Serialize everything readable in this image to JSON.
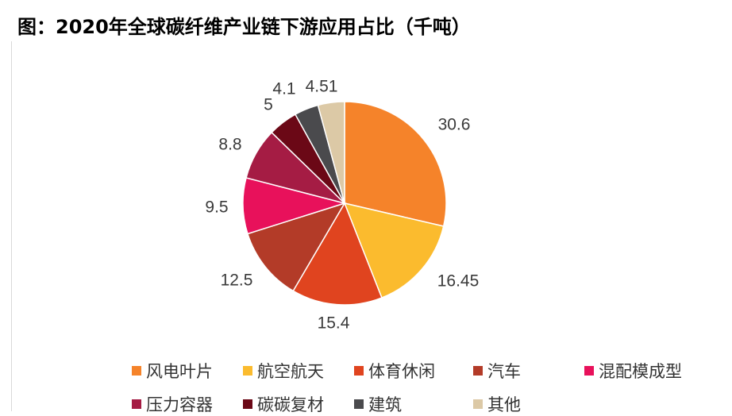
{
  "chart_data": {
    "type": "pie",
    "title": "图：2020年全球碳纤维产业链下游应用占比（千吨）",
    "categories": [
      "风电叶片",
      "航空航天",
      "体育休闲",
      "汽车",
      "混配模成型",
      "压力容器",
      "碳碳复材",
      "建筑",
      "其他"
    ],
    "values": [
      30.6,
      16.45,
      15.4,
      12.5,
      9.5,
      8.8,
      5,
      4.1,
      4.51
    ],
    "value_labels": [
      "30.6",
      "16.45",
      "15.4",
      "12.5",
      "9.5",
      "8.8",
      "5",
      "4.1",
      "4.51"
    ],
    "colors": [
      "#F5832A",
      "#FBBB2E",
      "#E0441F",
      "#B33B28",
      "#E8115B",
      "#A51C44",
      "#6B0816",
      "#4A4A4D",
      "#DCC9A6"
    ],
    "legend_placement": "bottom",
    "start_angle": "12 o'clock",
    "direction": "clockwise"
  }
}
